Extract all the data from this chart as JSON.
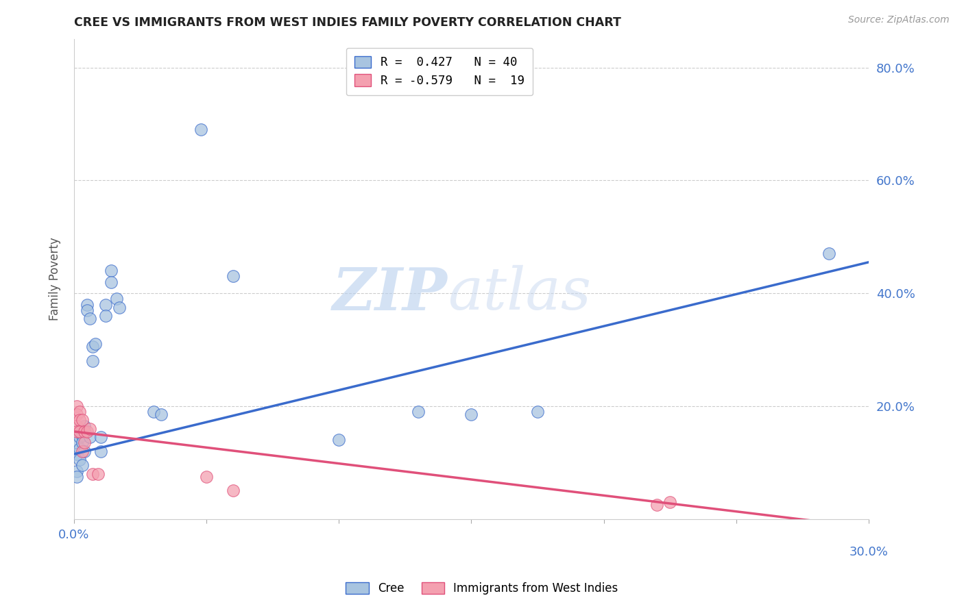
{
  "title": "CREE VS IMMIGRANTS FROM WEST INDIES FAMILY POVERTY CORRELATION CHART",
  "source": "Source: ZipAtlas.com",
  "ylabel": "Family Poverty",
  "xlim": [
    0.0,
    0.3
  ],
  "ylim": [
    0.0,
    0.85
  ],
  "xticks": [
    0.0,
    0.05,
    0.1,
    0.15,
    0.2,
    0.25,
    0.3
  ],
  "ytick_positions": [
    0.0,
    0.2,
    0.4,
    0.6,
    0.8
  ],
  "ytick_labels": [
    "",
    "20.0%",
    "40.0%",
    "60.0%",
    "80.0%"
  ],
  "legend_r1": "R =  0.427   N = 40",
  "legend_r2": "R = -0.579   N =  19",
  "watermark_zip": "ZIP",
  "watermark_atlas": "atlas",
  "cree_color": "#a8c4e0",
  "immigrants_color": "#f4a0b0",
  "cree_line_color": "#3a6bcc",
  "immigrants_line_color": "#e0507a",
  "background_color": "#ffffff",
  "grid_color": "#cccccc",
  "axis_label_color": "#4477cc",
  "cree_points": [
    [
      0.001,
      0.135
    ],
    [
      0.001,
      0.115
    ],
    [
      0.001,
      0.085
    ],
    [
      0.001,
      0.075
    ],
    [
      0.002,
      0.155
    ],
    [
      0.002,
      0.145
    ],
    [
      0.002,
      0.125
    ],
    [
      0.002,
      0.105
    ],
    [
      0.003,
      0.155
    ],
    [
      0.003,
      0.148
    ],
    [
      0.003,
      0.135
    ],
    [
      0.003,
      0.095
    ],
    [
      0.004,
      0.165
    ],
    [
      0.004,
      0.155
    ],
    [
      0.004,
      0.155
    ],
    [
      0.004,
      0.12
    ],
    [
      0.005,
      0.38
    ],
    [
      0.005,
      0.37
    ],
    [
      0.006,
      0.355
    ],
    [
      0.006,
      0.145
    ],
    [
      0.007,
      0.305
    ],
    [
      0.007,
      0.28
    ],
    [
      0.008,
      0.31
    ],
    [
      0.01,
      0.145
    ],
    [
      0.01,
      0.12
    ],
    [
      0.012,
      0.38
    ],
    [
      0.012,
      0.36
    ],
    [
      0.014,
      0.44
    ],
    [
      0.014,
      0.42
    ],
    [
      0.016,
      0.39
    ],
    [
      0.017,
      0.375
    ],
    [
      0.03,
      0.19
    ],
    [
      0.033,
      0.185
    ],
    [
      0.048,
      0.69
    ],
    [
      0.06,
      0.43
    ],
    [
      0.1,
      0.14
    ],
    [
      0.13,
      0.19
    ],
    [
      0.15,
      0.185
    ],
    [
      0.175,
      0.19
    ],
    [
      0.285,
      0.47
    ]
  ],
  "immigrants_points": [
    [
      0.001,
      0.2
    ],
    [
      0.001,
      0.185
    ],
    [
      0.001,
      0.165
    ],
    [
      0.001,
      0.155
    ],
    [
      0.002,
      0.19
    ],
    [
      0.002,
      0.175
    ],
    [
      0.002,
      0.155
    ],
    [
      0.003,
      0.175
    ],
    [
      0.003,
      0.12
    ],
    [
      0.004,
      0.155
    ],
    [
      0.004,
      0.135
    ],
    [
      0.005,
      0.155
    ],
    [
      0.006,
      0.16
    ],
    [
      0.007,
      0.08
    ],
    [
      0.009,
      0.08
    ],
    [
      0.05,
      0.075
    ],
    [
      0.06,
      0.05
    ],
    [
      0.22,
      0.025
    ],
    [
      0.225,
      0.03
    ]
  ],
  "cree_trendline_x": [
    0.0,
    0.3
  ],
  "cree_trendline_y": [
    0.115,
    0.455
  ],
  "immigrants_trendline_x": [
    0.0,
    0.3
  ],
  "immigrants_trendline_y": [
    0.155,
    -0.015
  ]
}
